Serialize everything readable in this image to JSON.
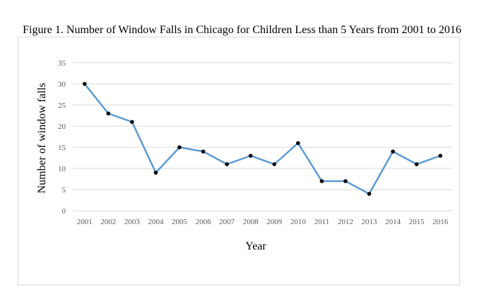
{
  "chart_data": {
    "type": "line",
    "title": "Figure 1. Number of Window Falls in Chicago for Children Less than 5 Years from 2001 to 2016",
    "xlabel": "Year",
    "ylabel": "Number of window falls",
    "categories": [
      "2001",
      "2002",
      "2003",
      "2004",
      "2005",
      "2006",
      "2007",
      "2008",
      "2009",
      "2010",
      "2011",
      "2012",
      "2013",
      "2014",
      "2015",
      "2016"
    ],
    "series": [
      {
        "values": [
          30,
          23,
          21,
          9,
          15,
          14,
          11,
          13,
          11,
          16,
          7,
          7,
          4,
          14,
          11,
          13
        ]
      }
    ],
    "ylim": [
      0,
      35
    ],
    "yticks": [
      0,
      5,
      10,
      15,
      20,
      25,
      30,
      35
    ],
    "grid": true,
    "legend": "none",
    "line_color": "#5b9bd5",
    "marker_color": "#000000",
    "grid_color": "#d9d9d9"
  }
}
